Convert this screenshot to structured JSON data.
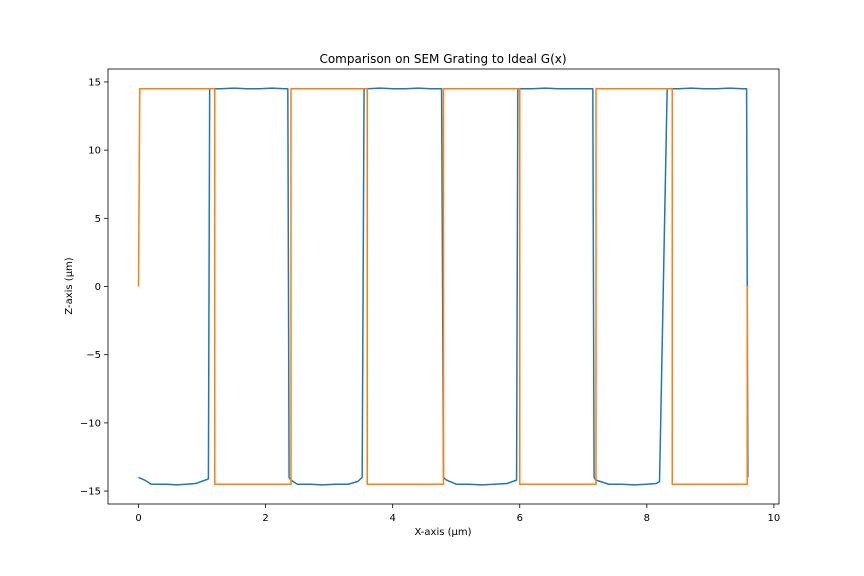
{
  "chart_data": {
    "type": "line",
    "title": "Comparison on SEM Grating to Ideal G(x)",
    "xlabel": "X-axis (μm)",
    "ylabel": "Z-axis (μm)",
    "xlim": [
      -0.48,
      10.08
    ],
    "ylim": [
      -15.95,
      15.95
    ],
    "xticks": [
      0,
      2,
      4,
      6,
      8,
      10
    ],
    "xtick_labels": [
      "0",
      "2",
      "4",
      "6",
      "8",
      "10"
    ],
    "yticks": [
      -15,
      -10,
      -5,
      0,
      5,
      10,
      15
    ],
    "ytick_labels": [
      "−15",
      "−10",
      "−5",
      "0",
      "5",
      "10",
      "15"
    ],
    "grid": false,
    "series": [
      {
        "color": "#1f77b4",
        "x": [
          0.0,
          0.1,
          0.2,
          0.3,
          0.45,
          0.6,
          0.75,
          0.9,
          1.05,
          1.1,
          1.12,
          1.15,
          1.3,
          1.5,
          1.7,
          1.9,
          2.1,
          2.3,
          2.35,
          2.37,
          2.4,
          2.5,
          2.7,
          2.9,
          3.1,
          3.3,
          3.45,
          3.52,
          3.55,
          3.6,
          3.8,
          4.0,
          4.2,
          4.4,
          4.6,
          4.77,
          4.8,
          4.85,
          5.0,
          5.2,
          5.4,
          5.6,
          5.8,
          5.95,
          5.97,
          6.0,
          6.2,
          6.4,
          6.6,
          6.8,
          7.0,
          7.15,
          7.17,
          7.2,
          7.4,
          7.6,
          7.8,
          8.0,
          8.15,
          8.2,
          8.32,
          8.35,
          8.5,
          8.7,
          8.9,
          9.1,
          9.3,
          9.5,
          9.57,
          9.59
        ],
        "y": [
          -14.0,
          -14.2,
          -14.5,
          -14.5,
          -14.5,
          -14.55,
          -14.5,
          -14.45,
          -14.2,
          -14.1,
          14.5,
          14.5,
          14.5,
          14.55,
          14.5,
          14.5,
          14.55,
          14.5,
          14.5,
          -14.0,
          -14.2,
          -14.5,
          -14.5,
          -14.55,
          -14.5,
          -14.5,
          -14.3,
          -14.0,
          14.5,
          14.5,
          14.55,
          14.5,
          14.5,
          14.55,
          14.5,
          14.5,
          -14.0,
          -14.2,
          -14.5,
          -14.5,
          -14.55,
          -14.5,
          -14.45,
          -14.2,
          14.5,
          14.5,
          14.5,
          14.55,
          14.5,
          14.5,
          14.5,
          14.5,
          -14.0,
          -14.2,
          -14.5,
          -14.5,
          -14.55,
          -14.5,
          -14.45,
          -14.3,
          14.5,
          14.5,
          14.5,
          14.55,
          14.5,
          14.5,
          14.55,
          14.5,
          14.5,
          -14.0
        ]
      },
      {
        "color": "#ff7f0e",
        "x": [
          0.0,
          0.02,
          0.02,
          1.2,
          1.2,
          2.4,
          2.4,
          3.6,
          3.6,
          4.8,
          4.8,
          6.0,
          6.0,
          7.2,
          7.2,
          8.4,
          8.4,
          9.58,
          9.58,
          9.6
        ],
        "y": [
          0.0,
          14.5,
          14.5,
          14.5,
          -14.5,
          -14.5,
          14.5,
          14.5,
          -14.5,
          -14.5,
          14.5,
          14.5,
          -14.5,
          -14.5,
          14.5,
          14.5,
          -14.5,
          -14.5,
          0.0,
          0.0
        ]
      }
    ]
  }
}
